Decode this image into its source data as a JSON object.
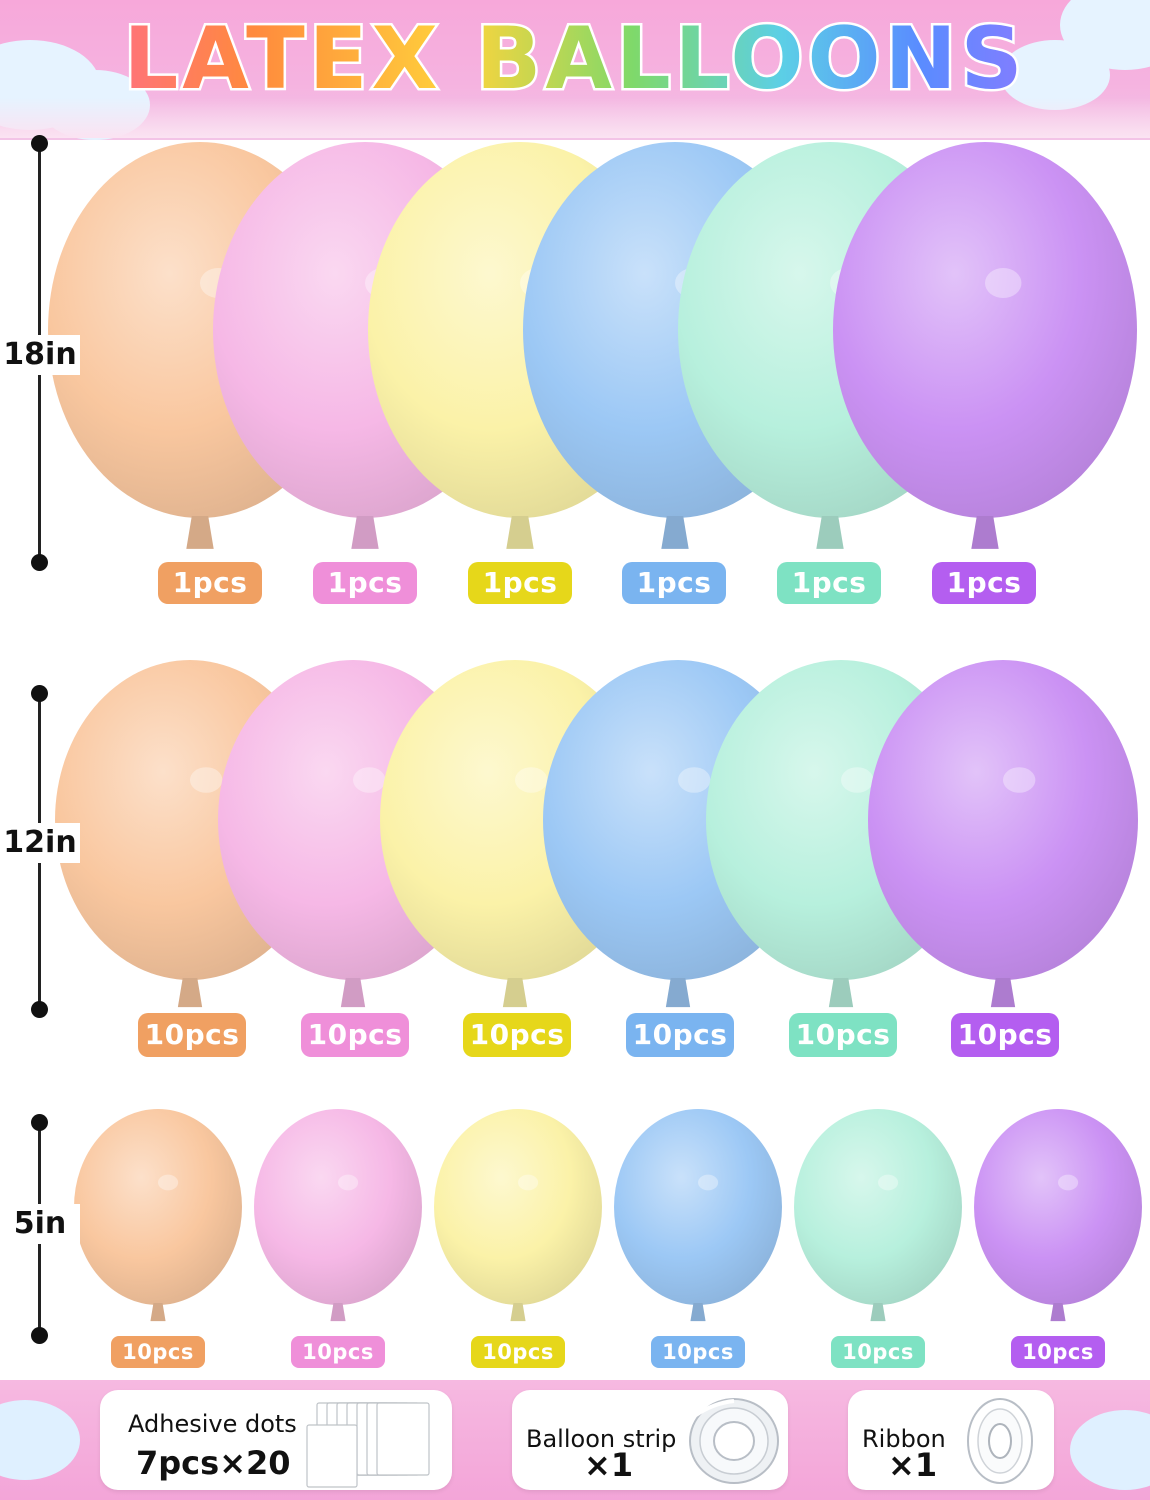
{
  "header": {
    "title": "LATEX BALLOONS"
  },
  "colors": {
    "peach": "#f9c79f",
    "pink": "#f6b8e6",
    "yellow": "#fbf2a8",
    "blue": "#9cc8f5",
    "mint": "#b7f0dd",
    "purple": "#cb92f4"
  },
  "badge_colors": {
    "peach": "#f0a062",
    "pink": "#ef8fd9",
    "yellow": "#e6d71a",
    "blue": "#7ab4f0",
    "mint": "#7ee2c3",
    "purple": "#b45ef0"
  },
  "sizes": [
    {
      "label": "18in",
      "balloons": [
        {
          "color": "peach",
          "qty": "1pcs"
        },
        {
          "color": "pink",
          "qty": "1pcs"
        },
        {
          "color": "yellow",
          "qty": "1pcs"
        },
        {
          "color": "blue",
          "qty": "1pcs"
        },
        {
          "color": "mint",
          "qty": "1pcs"
        },
        {
          "color": "purple",
          "qty": "1pcs"
        }
      ]
    },
    {
      "label": "12in",
      "balloons": [
        {
          "color": "peach",
          "qty": "10pcs"
        },
        {
          "color": "pink",
          "qty": "10pcs"
        },
        {
          "color": "yellow",
          "qty": "10pcs"
        },
        {
          "color": "blue",
          "qty": "10pcs"
        },
        {
          "color": "mint",
          "qty": "10pcs"
        },
        {
          "color": "purple",
          "qty": "10pcs"
        }
      ]
    },
    {
      "label": "5in",
      "balloons": [
        {
          "color": "peach",
          "qty": "10pcs"
        },
        {
          "color": "pink",
          "qty": "10pcs"
        },
        {
          "color": "yellow",
          "qty": "10pcs"
        },
        {
          "color": "blue",
          "qty": "10pcs"
        },
        {
          "color": "mint",
          "qty": "10pcs"
        },
        {
          "color": "purple",
          "qty": "10pcs"
        }
      ]
    }
  ],
  "accessories": [
    {
      "label": "Adhesive dots",
      "qty": "7pcs×20",
      "icon": "adhesive-dots-sheets-icon"
    },
    {
      "label": "Balloon strip",
      "qty": "×1",
      "icon": "tape-roll-icon"
    },
    {
      "label": "Ribbon",
      "qty": "×1",
      "icon": "ribbon-roll-icon"
    }
  ]
}
